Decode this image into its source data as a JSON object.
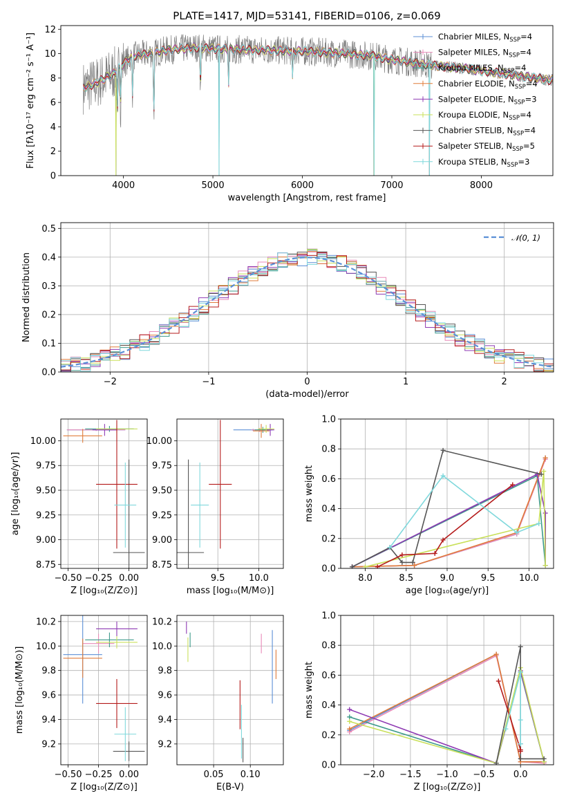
{
  "colors": {
    "chabrier_miles": "#5b8fd6",
    "salpeter_miles": "#e88ab8",
    "kroupa_miles": "#3d9a8b",
    "chabrier_elodie": "#e07b39",
    "salpeter_elodie": "#8e3ab3",
    "kroupa_elodie": "#c9e05a",
    "chabrier_stelib": "#555555",
    "salpeter_stelib": "#b41a1a",
    "kroupa_stelib": "#7fd8dc",
    "data": "#7f7f7f",
    "normal_curve": "#5b8fd6"
  },
  "chart_data": [
    {
      "id": "spectrum",
      "type": "line",
      "title": "PLATE=1417, MJD=53141, FIBERID=0106, z=0.069",
      "xlabel": "wavelength [Angstrom, rest frame]",
      "ylabel": "Flux [fλ10⁻¹⁷ erg cm⁻² s⁻¹ A⁻¹]",
      "xlim": [
        3300,
        8800
      ],
      "ylim": [
        0,
        12.3
      ],
      "xticks": [
        "4000",
        "5000",
        "6000",
        "7000",
        "8000"
      ],
      "yticks": [
        "0",
        "2",
        "4",
        "6",
        "8",
        "10",
        "12"
      ],
      "grid": false,
      "legend_position": "top-right",
      "legend": [
        {
          "label": "Chabrier MILES, N",
          "sub": "SSP",
          "val": "=4",
          "color_key": "chabrier_miles"
        },
        {
          "label": "Salpeter MILES, N",
          "sub": "SSP",
          "val": "=4",
          "color_key": "salpeter_miles"
        },
        {
          "label": "Kroupa MILES, N",
          "sub": "SSP",
          "val": "=4",
          "color_key": "kroupa_miles"
        },
        {
          "label": "Chabrier ELODIE, N",
          "sub": "SSP",
          "val": "=4",
          "color_key": "chabrier_elodie"
        },
        {
          "label": "Salpeter ELODIE, N",
          "sub": "SSP",
          "val": "=3",
          "color_key": "salpeter_elodie"
        },
        {
          "label": "Kroupa ELODIE, N",
          "sub": "SSP",
          "val": "=4",
          "color_key": "kroupa_elodie"
        },
        {
          "label": "Chabrier STELIB, N",
          "sub": "SSP",
          "val": "=4",
          "color_key": "chabrier_stelib"
        },
        {
          "label": "Salpeter STELIB, N",
          "sub": "SSP",
          "val": "=5",
          "color_key": "salpeter_stelib"
        },
        {
          "label": "Kroupa STELIB, N",
          "sub": "SSP",
          "val": "=3",
          "color_key": "kroupa_stelib"
        }
      ],
      "continuum": {
        "x": [
          3550,
          3700,
          3900,
          4000,
          4100,
          4300,
          4500,
          4800,
          5000,
          5500,
          6000,
          6500,
          6800,
          7000,
          7300,
          7500,
          7800,
          8000,
          8300,
          8600,
          8800
        ],
        "y": [
          7.2,
          7.6,
          8.4,
          9.2,
          9.8,
          10.0,
          10.3,
          10.5,
          10.4,
          10.3,
          10.2,
          10.0,
          9.8,
          9.5,
          9.2,
          9.0,
          8.8,
          8.6,
          8.3,
          8.0,
          7.8
        ]
      },
      "absorption_lines": [
        {
          "x": 3933,
          "y": 5.4
        },
        {
          "x": 3968,
          "y": 5.8
        },
        {
          "x": 4102,
          "y": 6.5
        },
        {
          "x": 4340,
          "y": 5.1
        },
        {
          "x": 4861,
          "y": 7.2
        },
        {
          "x": 5175,
          "y": 7.5
        },
        {
          "x": 5890,
          "y": 8.0
        }
      ],
      "spikes_to_zero": [
        3918,
        5070,
        6800,
        7420
      ],
      "noise_range": [
        3550,
        7450
      ]
    },
    {
      "id": "residuals",
      "type": "area",
      "xlabel": "(data-model)/error",
      "ylabel": "Normed distribution",
      "xlim": [
        -2.5,
        2.5
      ],
      "ylim": [
        0,
        0.52
      ],
      "xticks": [
        -2,
        -1,
        0,
        1,
        2
      ],
      "yticks": [
        0.0,
        0.1,
        0.2,
        0.3,
        0.4,
        0.5
      ],
      "tick_labels_x": [
        "−2",
        "−1",
        "0",
        "1",
        "2"
      ],
      "tick_labels_y": [
        "0.0",
        "0.1",
        "0.2",
        "0.3",
        "0.4",
        "0.5"
      ],
      "grid": true,
      "legend_position": "top-right",
      "legend": [
        {
          "label": "𝒩(0, 1)",
          "color_key": "normal_curve"
        }
      ],
      "bin_width": 0.1
    },
    {
      "id": "age_vs_Z",
      "type": "scatter",
      "xlabel": "Z [log₁₀(Z/Z⊙)]",
      "ylabel": "age  [log₁₀(age/yr)]",
      "xlim": [
        -0.56,
        0.15
      ],
      "ylim": [
        8.71,
        10.22
      ],
      "xticks": [
        -0.5,
        -0.25,
        0.0
      ],
      "yticks": [
        8.75,
        9.0,
        9.25,
        9.5,
        9.75,
        10.0
      ],
      "tick_labels_x": [
        "−0.50",
        "−0.25",
        "0.00"
      ],
      "tick_labels_y": [
        "8.75",
        "9.00",
        "9.25",
        "9.50",
        "9.75",
        "10.00"
      ],
      "grid": true,
      "points": [
        {
          "color_key": "chabrier_miles",
          "x": -0.27,
          "xerr": 0.24,
          "y": 10.11,
          "yerr": 0.01
        },
        {
          "color_key": "salpeter_miles",
          "x": -0.27,
          "xerr": 0.24,
          "y": 10.11,
          "yerr": 0.01
        },
        {
          "color_key": "kroupa_miles",
          "x": -0.16,
          "xerr": 0.2,
          "y": 10.12,
          "yerr": 0.03
        },
        {
          "color_key": "chabrier_elodie",
          "x": -0.38,
          "xerr": 0.16,
          "y": 10.05,
          "yerr": 0.07
        },
        {
          "color_key": "salpeter_elodie",
          "x": -0.2,
          "xerr": 0.1,
          "y": 10.11,
          "yerr": 0.06
        },
        {
          "color_key": "kroupa_elodie",
          "x": -0.1,
          "xerr": 0.17,
          "y": 10.12,
          "yerr": 0.04
        },
        {
          "color_key": "chabrier_stelib",
          "x": 0.0,
          "xerr": 0.13,
          "y": 8.87,
          "yerr": 0.94
        },
        {
          "color_key": "salpeter_stelib",
          "x": -0.1,
          "xerr": 0.17,
          "y": 9.56,
          "yerr": 0.65
        },
        {
          "color_key": "kroupa_stelib",
          "x": -0.03,
          "xerr": 0.09,
          "y": 9.35,
          "yerr": 0.43
        }
      ]
    },
    {
      "id": "age_vs_mass",
      "type": "scatter",
      "xlabel": "mass [log₁₀(M/M⊙)]",
      "ylabel": "",
      "xlim": [
        9.0,
        10.3
      ],
      "ylim": [
        8.71,
        10.22
      ],
      "xticks": [
        9.5,
        10.0
      ],
      "yticks": [
        8.75,
        9.0,
        9.25,
        9.5,
        9.75,
        10.0
      ],
      "tick_labels_x": [
        "9.5",
        "10.0"
      ],
      "tick_labels_y": [
        "8.75",
        "9.00",
        "9.25",
        "9.50",
        "9.75",
        "10.00"
      ],
      "grid": true,
      "points": [
        {
          "color_key": "chabrier_miles",
          "x": 9.93,
          "xerr": 0.24,
          "y": 10.11,
          "yerr": 0.01
        },
        {
          "color_key": "salpeter_miles",
          "x": 10.01,
          "xerr": 0.1,
          "y": 10.11,
          "yerr": 0.02
        },
        {
          "color_key": "kroupa_miles",
          "x": 10.05,
          "xerr": 0.1,
          "y": 10.11,
          "yerr": 0.03
        },
        {
          "color_key": "chabrier_elodie",
          "x": 10.03,
          "xerr": 0.1,
          "y": 10.1,
          "yerr": 0.07
        },
        {
          "color_key": "salpeter_elodie",
          "x": 10.14,
          "xerr": 0.05,
          "y": 10.11,
          "yerr": 0.06
        },
        {
          "color_key": "kroupa_elodie",
          "x": 10.09,
          "xerr": 0.1,
          "y": 10.12,
          "yerr": 0.04
        },
        {
          "color_key": "chabrier_stelib",
          "x": 9.14,
          "xerr": 0.19,
          "y": 8.87,
          "yerr": 0.94
        },
        {
          "color_key": "salpeter_stelib",
          "x": 9.53,
          "xerr": 0.14,
          "y": 9.56,
          "yerr": 0.65
        },
        {
          "color_key": "kroupa_stelib",
          "x": 9.28,
          "xerr": 0.11,
          "y": 9.35,
          "yerr": 0.43
        }
      ]
    },
    {
      "id": "massweight_vs_age",
      "type": "line",
      "xlabel": "age  [log₁₀(age/yr)]",
      "ylabel": "mass weight",
      "xlim": [
        7.7,
        10.3
      ],
      "ylim": [
        0,
        1.0
      ],
      "xticks": [
        8.0,
        8.5,
        9.0,
        9.5,
        10.0
      ],
      "yticks": [
        0.0,
        0.2,
        0.4,
        0.6,
        0.8,
        1.0
      ],
      "tick_labels_x": [
        "8.0",
        "8.5",
        "9.0",
        "9.5",
        "10.0"
      ],
      "tick_labels_y": [
        "0.0",
        "0.2",
        "0.4",
        "0.6",
        "0.8",
        "1.0"
      ],
      "grid": true,
      "series": [
        {
          "color_key": "chabrier_miles",
          "x": [
            7.84,
            8.6,
            9.85,
            10.2
          ],
          "y": [
            0.01,
            0.02,
            0.23,
            0.74
          ]
        },
        {
          "color_key": "salpeter_miles",
          "x": [
            7.84,
            8.6,
            9.85,
            10.2
          ],
          "y": [
            0.01,
            0.02,
            0.23,
            0.73
          ]
        },
        {
          "color_key": "kroupa_miles",
          "x": [
            7.84,
            10.1,
            10.2
          ],
          "y": [
            0.01,
            0.62,
            0.02
          ]
        },
        {
          "color_key": "chabrier_elodie",
          "x": [
            7.84,
            8.6,
            9.85,
            10.2
          ],
          "y": [
            0.01,
            0.02,
            0.24,
            0.74
          ]
        },
        {
          "color_key": "salpeter_elodie",
          "x": [
            7.84,
            10.1,
            10.2,
            10.2
          ],
          "y": [
            0.01,
            0.63,
            0.37,
            0.02
          ]
        },
        {
          "color_key": "kroupa_elodie",
          "x": [
            8.0,
            10.12,
            10.18,
            10.2
          ],
          "y": [
            0.01,
            0.3,
            0.65,
            0.02
          ]
        },
        {
          "color_key": "chabrier_stelib",
          "x": [
            7.84,
            8.3,
            8.45,
            8.58,
            8.95,
            10.15
          ],
          "y": [
            0.01,
            0.14,
            0.04,
            0.04,
            0.79,
            0.63
          ]
        },
        {
          "color_key": "salpeter_stelib",
          "x": [
            8.15,
            8.45,
            8.85,
            8.95,
            9.8
          ],
          "y": [
            0.01,
            0.09,
            0.1,
            0.19,
            0.56
          ]
        },
        {
          "color_key": "kroupa_stelib",
          "x": [
            8.3,
            8.95,
            9.85,
            10.12
          ],
          "y": [
            0.14,
            0.62,
            0.24,
            0.3
          ]
        }
      ]
    },
    {
      "id": "mass_vs_Z",
      "type": "scatter",
      "xlabel": "Z [log₁₀(Z/Z⊙)]",
      "ylabel": "mass [log₁₀(M/M⊙)]",
      "xlim": [
        -0.56,
        0.15
      ],
      "ylim": [
        9.03,
        10.25
      ],
      "xticks": [
        -0.5,
        -0.25,
        0.0
      ],
      "yticks": [
        9.2,
        9.4,
        9.6,
        9.8,
        10.0,
        10.2
      ],
      "tick_labels_x": [
        "−0.50",
        "−0.25",
        "0.00"
      ],
      "tick_labels_y": [
        "9.2",
        "9.4",
        "9.6",
        "9.8",
        "10.0",
        "10.2"
      ],
      "grid": true,
      "points": [
        {
          "color_key": "chabrier_miles",
          "x": -0.38,
          "xerr": 0.16,
          "y": 9.93,
          "yerr": 0.4
        },
        {
          "color_key": "salpeter_miles",
          "x": -0.25,
          "xerr": 0.13,
          "y": 10.02,
          "yerr": 0.08
        },
        {
          "color_key": "kroupa_miles",
          "x": -0.16,
          "xerr": 0.2,
          "y": 10.05,
          "yerr": 0.06
        },
        {
          "color_key": "chabrier_elodie",
          "x": -0.38,
          "xerr": 0.16,
          "y": 9.9,
          "yerr": 0.16
        },
        {
          "color_key": "salpeter_elodie",
          "x": -0.1,
          "xerr": 0.17,
          "y": 10.14,
          "yerr": 0.06
        },
        {
          "color_key": "kroupa_elodie",
          "x": -0.1,
          "xerr": 0.17,
          "y": 10.03,
          "yerr": 0.05
        },
        {
          "color_key": "chabrier_stelib",
          "x": 0.0,
          "xerr": 0.13,
          "y": 9.14,
          "yerr": 0.08
        },
        {
          "color_key": "salpeter_stelib",
          "x": -0.1,
          "xerr": 0.17,
          "y": 9.53,
          "yerr": 0.2
        },
        {
          "color_key": "kroupa_stelib",
          "x": -0.03,
          "xerr": 0.09,
          "y": 9.28,
          "yerr": 0.22
        }
      ]
    },
    {
      "id": "mass_vs_ebv",
      "type": "scatter",
      "xlabel": "E(B-V)",
      "ylabel": "",
      "xlim": [
        0.0,
        0.145
      ],
      "ylim": [
        9.03,
        10.25
      ],
      "xticks": [
        0.05,
        0.1
      ],
      "yticks": [
        9.2,
        9.4,
        9.6,
        9.8,
        10.0,
        10.2
      ],
      "tick_labels_x": [
        "0.05",
        "0.10"
      ],
      "tick_labels_y": [
        "9.2",
        "9.4",
        "9.6",
        "9.8",
        "10.0",
        "10.2"
      ],
      "grid": true,
      "points": [
        {
          "color_key": "chabrier_miles",
          "x": 0.13,
          "xerr": 0.0,
          "y": 9.83,
          "yerr": 0.3
        },
        {
          "color_key": "salpeter_miles",
          "x": 0.115,
          "xerr": 0.0,
          "y": 10.02,
          "yerr": 0.08
        },
        {
          "color_key": "kroupa_miles",
          "x": 0.018,
          "xerr": 0.0,
          "y": 10.05,
          "yerr": 0.06
        },
        {
          "color_key": "chabrier_elodie",
          "x": 0.135,
          "xerr": 0.0,
          "y": 9.85,
          "yerr": 0.12
        },
        {
          "color_key": "salpeter_elodie",
          "x": 0.013,
          "xerr": 0.0,
          "y": 10.15,
          "yerr": 0.05
        },
        {
          "color_key": "kroupa_elodie",
          "x": 0.015,
          "xerr": 0.0,
          "y": 9.97,
          "yerr": 0.1
        },
        {
          "color_key": "chabrier_stelib",
          "x": 0.09,
          "xerr": 0.0,
          "y": 9.15,
          "yerr": 0.1
        },
        {
          "color_key": "salpeter_stelib",
          "x": 0.086,
          "xerr": 0.0,
          "y": 9.52,
          "yerr": 0.2
        },
        {
          "color_key": "kroupa_stelib",
          "x": 0.088,
          "xerr": 0.0,
          "y": 9.3,
          "yerr": 0.22
        }
      ]
    },
    {
      "id": "massweight_vs_Z",
      "type": "line",
      "xlabel": "Z [log₁₀(Z/Z⊙)]",
      "ylabel": "mass weight",
      "xlim": [
        -2.45,
        0.45
      ],
      "ylim": [
        0,
        1.0
      ],
      "xticks": [
        -2.0,
        -1.5,
        -1.0,
        -0.5,
        0.0
      ],
      "yticks": [
        0.0,
        0.2,
        0.4,
        0.6,
        0.8,
        1.0
      ],
      "tick_labels_x": [
        "−2.0",
        "−1.5",
        "−1.0",
        "−0.5",
        "0.0"
      ],
      "tick_labels_y": [
        "0.0",
        "0.2",
        "0.4",
        "0.6",
        "0.8",
        "1.0"
      ],
      "grid": true,
      "series": [
        {
          "color_key": "chabrier_miles",
          "x": [
            -2.33,
            -0.33,
            0.0,
            0.32
          ],
          "y": [
            0.23,
            0.74,
            0.02,
            0.02
          ]
        },
        {
          "color_key": "salpeter_miles",
          "x": [
            -2.33,
            -0.33,
            0.0,
            0.32
          ],
          "y": [
            0.22,
            0.73,
            0.02,
            0.01
          ]
        },
        {
          "color_key": "kroupa_miles",
          "x": [
            -2.33,
            -0.33,
            0.0,
            0.32
          ],
          "y": [
            0.32,
            0.01,
            0.62,
            0.02
          ]
        },
        {
          "color_key": "chabrier_elodie",
          "x": [
            -2.33,
            -0.33,
            0.0,
            0.32
          ],
          "y": [
            0.24,
            0.74,
            0.02,
            0.02
          ]
        },
        {
          "color_key": "salpeter_elodie",
          "x": [
            -2.33,
            -0.33,
            0.0,
            0.32
          ],
          "y": [
            0.37,
            0.01,
            0.63,
            0.02
          ]
        },
        {
          "color_key": "kroupa_elodie",
          "x": [
            -2.33,
            -0.33,
            0.0,
            0.32
          ],
          "y": [
            0.29,
            0.01,
            0.65,
            0.02
          ]
        },
        {
          "color_key": "chabrier_stelib",
          "x": [
            -0.33,
            0.0,
            0.0,
            0.0,
            0.32
          ],
          "y": [
            0.01,
            0.79,
            0.14,
            0.04,
            0.04
          ]
        },
        {
          "color_key": "salpeter_stelib",
          "x": [
            -0.3,
            0.0,
            0.0
          ],
          "y": [
            0.56,
            0.1,
            0.09
          ]
        },
        {
          "color_key": "kroupa_stelib",
          "x": [
            -0.2,
            0.0,
            0.0,
            0.0
          ],
          "y": [
            0.24,
            0.62,
            0.3,
            0.14
          ]
        }
      ]
    }
  ]
}
